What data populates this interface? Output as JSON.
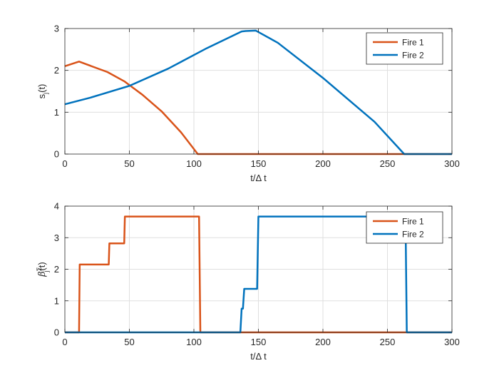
{
  "chart_data": [
    {
      "type": "line",
      "xlabel": "t/Δ t",
      "ylabel": "s_j(t)",
      "xlim": [
        0,
        300
      ],
      "ylim": [
        0,
        3
      ],
      "xticks": [
        0,
        50,
        100,
        150,
        200,
        250,
        300
      ],
      "yticks": [
        0,
        1,
        2,
        3
      ],
      "grid": true,
      "legend_position": "top-right",
      "series": [
        {
          "name": "Fire 1",
          "color": "#D95319",
          "points": [
            [
              0,
              2.1
            ],
            [
              11,
              2.21
            ],
            [
              33,
              1.96
            ],
            [
              46,
              1.74
            ],
            [
              60,
              1.42
            ],
            [
              75,
              1.02
            ],
            [
              90,
              0.52
            ],
            [
              103,
              0.0
            ],
            [
              300,
              0.0
            ]
          ]
        },
        {
          "name": "Fire 2",
          "color": "#0072BD",
          "points": [
            [
              0,
              1.19
            ],
            [
              20,
              1.35
            ],
            [
              50,
              1.63
            ],
            [
              80,
              2.04
            ],
            [
              110,
              2.53
            ],
            [
              137,
              2.93
            ],
            [
              140,
              2.94
            ],
            [
              148,
              2.95
            ],
            [
              165,
              2.66
            ],
            [
              200,
              1.82
            ],
            [
              240,
              0.77
            ],
            [
              263,
              0.0
            ],
            [
              300,
              0.0
            ]
          ]
        }
      ]
    },
    {
      "type": "line",
      "xlabel": "t/Δ t",
      "ylabel": "β_j^Σ(t)",
      "xlim": [
        0,
        300
      ],
      "ylim": [
        0,
        4
      ],
      "xticks": [
        0,
        50,
        100,
        150,
        200,
        250,
        300
      ],
      "yticks": [
        0,
        1,
        2,
        3,
        4
      ],
      "grid": true,
      "legend_position": "top-right",
      "series": [
        {
          "name": "Fire 1",
          "color": "#D95319",
          "points": [
            [
              0,
              0
            ],
            [
              11,
              0
            ],
            [
              11.5,
              2.15
            ],
            [
              34,
              2.15
            ],
            [
              34.5,
              2.82
            ],
            [
              46,
              2.82
            ],
            [
              46.5,
              3.67
            ],
            [
              104,
              3.67
            ],
            [
              105,
              0
            ],
            [
              300,
              0
            ]
          ]
        },
        {
          "name": "Fire 2",
          "color": "#0072BD",
          "points": [
            [
              0,
              0
            ],
            [
              136,
              0
            ],
            [
              137,
              0.75
            ],
            [
              138,
              0.75
            ],
            [
              139,
              1.38
            ],
            [
              149,
              1.38
            ],
            [
              150,
              3.67
            ],
            [
              264,
              3.67
            ],
            [
              265,
              0
            ],
            [
              300,
              0
            ]
          ]
        }
      ]
    }
  ]
}
